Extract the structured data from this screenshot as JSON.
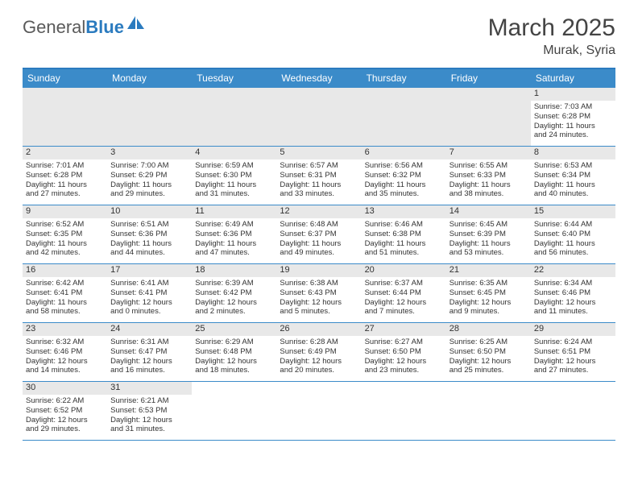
{
  "brand": {
    "part1": "General",
    "part2": "Blue"
  },
  "title": "March 2025",
  "location": "Murak, Syria",
  "colors": {
    "header_bar": "#3b8bc9",
    "border": "#2b7bbf",
    "daynum_bg": "#e8e8e8",
    "text": "#333333",
    "bg": "#ffffff"
  },
  "fonts": {
    "body_pt": 10,
    "title_pt": 30,
    "weekday_pt": 12
  },
  "weekdays": [
    "Sunday",
    "Monday",
    "Tuesday",
    "Wednesday",
    "Thursday",
    "Friday",
    "Saturday"
  ],
  "weeks": [
    [
      null,
      null,
      null,
      null,
      null,
      null,
      {
        "n": "1",
        "sr": "Sunrise: 7:03 AM",
        "ss": "Sunset: 6:28 PM",
        "dl1": "Daylight: 11 hours",
        "dl2": "and 24 minutes."
      }
    ],
    [
      {
        "n": "2",
        "sr": "Sunrise: 7:01 AM",
        "ss": "Sunset: 6:28 PM",
        "dl1": "Daylight: 11 hours",
        "dl2": "and 27 minutes."
      },
      {
        "n": "3",
        "sr": "Sunrise: 7:00 AM",
        "ss": "Sunset: 6:29 PM",
        "dl1": "Daylight: 11 hours",
        "dl2": "and 29 minutes."
      },
      {
        "n": "4",
        "sr": "Sunrise: 6:59 AM",
        "ss": "Sunset: 6:30 PM",
        "dl1": "Daylight: 11 hours",
        "dl2": "and 31 minutes."
      },
      {
        "n": "5",
        "sr": "Sunrise: 6:57 AM",
        "ss": "Sunset: 6:31 PM",
        "dl1": "Daylight: 11 hours",
        "dl2": "and 33 minutes."
      },
      {
        "n": "6",
        "sr": "Sunrise: 6:56 AM",
        "ss": "Sunset: 6:32 PM",
        "dl1": "Daylight: 11 hours",
        "dl2": "and 35 minutes."
      },
      {
        "n": "7",
        "sr": "Sunrise: 6:55 AM",
        "ss": "Sunset: 6:33 PM",
        "dl1": "Daylight: 11 hours",
        "dl2": "and 38 minutes."
      },
      {
        "n": "8",
        "sr": "Sunrise: 6:53 AM",
        "ss": "Sunset: 6:34 PM",
        "dl1": "Daylight: 11 hours",
        "dl2": "and 40 minutes."
      }
    ],
    [
      {
        "n": "9",
        "sr": "Sunrise: 6:52 AM",
        "ss": "Sunset: 6:35 PM",
        "dl1": "Daylight: 11 hours",
        "dl2": "and 42 minutes."
      },
      {
        "n": "10",
        "sr": "Sunrise: 6:51 AM",
        "ss": "Sunset: 6:36 PM",
        "dl1": "Daylight: 11 hours",
        "dl2": "and 44 minutes."
      },
      {
        "n": "11",
        "sr": "Sunrise: 6:49 AM",
        "ss": "Sunset: 6:36 PM",
        "dl1": "Daylight: 11 hours",
        "dl2": "and 47 minutes."
      },
      {
        "n": "12",
        "sr": "Sunrise: 6:48 AM",
        "ss": "Sunset: 6:37 PM",
        "dl1": "Daylight: 11 hours",
        "dl2": "and 49 minutes."
      },
      {
        "n": "13",
        "sr": "Sunrise: 6:46 AM",
        "ss": "Sunset: 6:38 PM",
        "dl1": "Daylight: 11 hours",
        "dl2": "and 51 minutes."
      },
      {
        "n": "14",
        "sr": "Sunrise: 6:45 AM",
        "ss": "Sunset: 6:39 PM",
        "dl1": "Daylight: 11 hours",
        "dl2": "and 53 minutes."
      },
      {
        "n": "15",
        "sr": "Sunrise: 6:44 AM",
        "ss": "Sunset: 6:40 PM",
        "dl1": "Daylight: 11 hours",
        "dl2": "and 56 minutes."
      }
    ],
    [
      {
        "n": "16",
        "sr": "Sunrise: 6:42 AM",
        "ss": "Sunset: 6:41 PM",
        "dl1": "Daylight: 11 hours",
        "dl2": "and 58 minutes."
      },
      {
        "n": "17",
        "sr": "Sunrise: 6:41 AM",
        "ss": "Sunset: 6:41 PM",
        "dl1": "Daylight: 12 hours",
        "dl2": "and 0 minutes."
      },
      {
        "n": "18",
        "sr": "Sunrise: 6:39 AM",
        "ss": "Sunset: 6:42 PM",
        "dl1": "Daylight: 12 hours",
        "dl2": "and 2 minutes."
      },
      {
        "n": "19",
        "sr": "Sunrise: 6:38 AM",
        "ss": "Sunset: 6:43 PM",
        "dl1": "Daylight: 12 hours",
        "dl2": "and 5 minutes."
      },
      {
        "n": "20",
        "sr": "Sunrise: 6:37 AM",
        "ss": "Sunset: 6:44 PM",
        "dl1": "Daylight: 12 hours",
        "dl2": "and 7 minutes."
      },
      {
        "n": "21",
        "sr": "Sunrise: 6:35 AM",
        "ss": "Sunset: 6:45 PM",
        "dl1": "Daylight: 12 hours",
        "dl2": "and 9 minutes."
      },
      {
        "n": "22",
        "sr": "Sunrise: 6:34 AM",
        "ss": "Sunset: 6:46 PM",
        "dl1": "Daylight: 12 hours",
        "dl2": "and 11 minutes."
      }
    ],
    [
      {
        "n": "23",
        "sr": "Sunrise: 6:32 AM",
        "ss": "Sunset: 6:46 PM",
        "dl1": "Daylight: 12 hours",
        "dl2": "and 14 minutes."
      },
      {
        "n": "24",
        "sr": "Sunrise: 6:31 AM",
        "ss": "Sunset: 6:47 PM",
        "dl1": "Daylight: 12 hours",
        "dl2": "and 16 minutes."
      },
      {
        "n": "25",
        "sr": "Sunrise: 6:29 AM",
        "ss": "Sunset: 6:48 PM",
        "dl1": "Daylight: 12 hours",
        "dl2": "and 18 minutes."
      },
      {
        "n": "26",
        "sr": "Sunrise: 6:28 AM",
        "ss": "Sunset: 6:49 PM",
        "dl1": "Daylight: 12 hours",
        "dl2": "and 20 minutes."
      },
      {
        "n": "27",
        "sr": "Sunrise: 6:27 AM",
        "ss": "Sunset: 6:50 PM",
        "dl1": "Daylight: 12 hours",
        "dl2": "and 23 minutes."
      },
      {
        "n": "28",
        "sr": "Sunrise: 6:25 AM",
        "ss": "Sunset: 6:50 PM",
        "dl1": "Daylight: 12 hours",
        "dl2": "and 25 minutes."
      },
      {
        "n": "29",
        "sr": "Sunrise: 6:24 AM",
        "ss": "Sunset: 6:51 PM",
        "dl1": "Daylight: 12 hours",
        "dl2": "and 27 minutes."
      }
    ],
    [
      {
        "n": "30",
        "sr": "Sunrise: 6:22 AM",
        "ss": "Sunset: 6:52 PM",
        "dl1": "Daylight: 12 hours",
        "dl2": "and 29 minutes."
      },
      {
        "n": "31",
        "sr": "Sunrise: 6:21 AM",
        "ss": "Sunset: 6:53 PM",
        "dl1": "Daylight: 12 hours",
        "dl2": "and 31 minutes."
      },
      null,
      null,
      null,
      null,
      null
    ]
  ]
}
